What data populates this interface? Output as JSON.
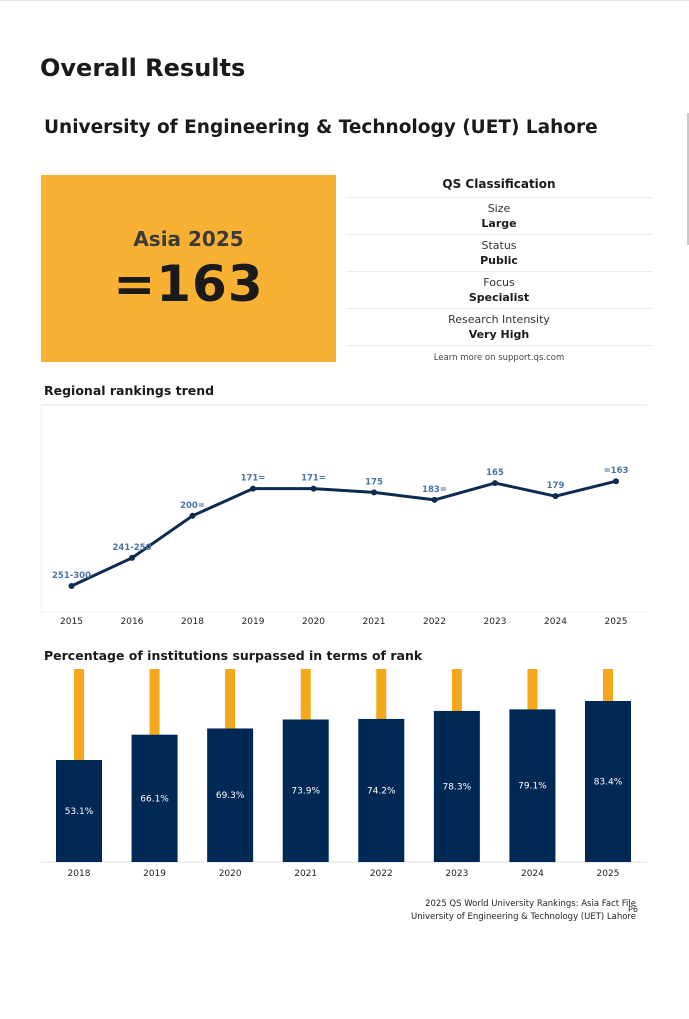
{
  "page": {
    "title": "Overall Results",
    "university": "University of Engineering & Technology (UET) Lahore"
  },
  "rank_box": {
    "region_year": "Asia 2025",
    "rank": "=163",
    "color": "#f8b133"
  },
  "classification": {
    "heading": "QS Classification",
    "rows": [
      {
        "label": "Size",
        "value": "Large"
      },
      {
        "label": "Status",
        "value": "Public"
      },
      {
        "label": "Focus",
        "value": "Specialist"
      },
      {
        "label": "Research Intensity",
        "value": "Very High"
      }
    ],
    "learn_more": "Learn more on support.qs.com"
  },
  "sections": {
    "trend_title": "Regional rankings trend",
    "surpassed_title": "Percentage of institutions surpassed in terms of rank"
  },
  "footer": {
    "line1": "2025 QS World University Rankings: Asia Fact File",
    "line2": "University of Engineering & Technology (UET) Lahore",
    "page": "P6"
  },
  "chart_data": [
    {
      "type": "line",
      "title": "Regional rankings trend",
      "x": [
        "2015",
        "2016",
        "2018",
        "2019",
        "2020",
        "2021",
        "2022",
        "2023",
        "2024",
        "2025"
      ],
      "labels": [
        "251-300",
        "241-250",
        "200=",
        "171=",
        "171=",
        "175",
        "183=",
        "165",
        "179",
        "=163"
      ],
      "values": [
        275,
        245,
        200,
        171,
        171,
        175,
        183,
        165,
        179,
        163
      ],
      "y_inverted": true,
      "ylim": [
        135,
        290
      ],
      "grid": false,
      "line_color": "#0d2b50",
      "label_color": "#4a73a8"
    },
    {
      "type": "bar",
      "title": "Percentage of institutions surpassed in terms of rank",
      "categories": [
        "2018",
        "2019",
        "2020",
        "2021",
        "2022",
        "2023",
        "2024",
        "2025"
      ],
      "values": [
        53.1,
        66.1,
        69.3,
        73.9,
        74.2,
        78.3,
        79.1,
        83.4
      ],
      "value_labels": [
        "53.1%",
        "66.1%",
        "69.3%",
        "73.9%",
        "74.2%",
        "78.3%",
        "79.1%",
        "83.4%"
      ],
      "ylim": [
        0,
        100
      ],
      "bar_color": "#002855",
      "remainder_color": "#f5a81c"
    }
  ]
}
